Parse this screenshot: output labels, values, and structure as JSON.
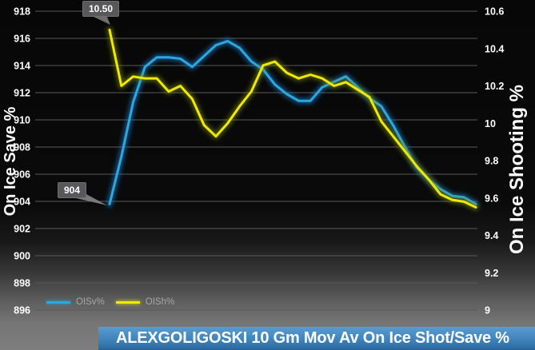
{
  "title_bar": {
    "text": "ALEXGOLIGOSKI 10 Gm Mov Av On Ice Shot/Save %",
    "bg_color": "#4186be"
  },
  "legend": [
    {
      "label": "OISv%",
      "color": "#2aa8e0"
    },
    {
      "label": "OISh%",
      "color": "#f0e800"
    }
  ],
  "data_labels": [
    {
      "text": "10.50",
      "series": "OISh%",
      "point": "first"
    },
    {
      "text": "904",
      "series": "OISv%",
      "point": "first"
    }
  ],
  "chart_data": {
    "type": "line",
    "title": "ALEXGOLIGOSKI 10 Gm Mov Av On Ice Shot/Save %",
    "x_label": "",
    "x": [
      1,
      2,
      3,
      4,
      5,
      6,
      7,
      8,
      9,
      10,
      11,
      12,
      13,
      14,
      15,
      16,
      17,
      18,
      19,
      20,
      21,
      22,
      23,
      24,
      25,
      26,
      27,
      28,
      29,
      30,
      31,
      32
    ],
    "left_axis": {
      "label": "On Ice Save %",
      "min": 896,
      "max": 918,
      "ticks": [
        918,
        916,
        914,
        912,
        910,
        908,
        906,
        904,
        902,
        900,
        898,
        896
      ]
    },
    "right_axis": {
      "label": "On Ice Shooting %",
      "min": 9,
      "max": 10.6,
      "ticks": [
        10.6,
        10.4,
        10.2,
        10,
        9.8,
        9.6,
        9.4,
        9.2,
        9
      ]
    },
    "grid": true,
    "legend_position": "bottom-left",
    "plot_background": "#000000",
    "gridline_color": "#595959",
    "series": [
      {
        "name": "OISv%",
        "axis": "left",
        "color": "#2aa8e0",
        "glow": "#1d7fd0",
        "values": [
          903.8,
          907.3,
          911.3,
          913.9,
          914.6,
          914.6,
          914.5,
          913.9,
          914.7,
          915.5,
          915.8,
          915.3,
          914.3,
          913.7,
          912.6,
          911.9,
          911.4,
          911.4,
          912.4,
          912.8,
          913.2,
          912.4,
          911.6,
          911.0,
          909.6,
          908.0,
          906.5,
          905.6,
          904.9,
          904.4,
          904.3,
          903.8
        ]
      },
      {
        "name": "OISh%",
        "axis": "right",
        "color": "#f0e800",
        "glow": "#7f8f00",
        "values": [
          10.5,
          10.2,
          10.25,
          10.24,
          10.24,
          10.17,
          10.2,
          10.13,
          9.99,
          9.93,
          10.0,
          10.09,
          10.17,
          10.31,
          10.33,
          10.27,
          10.24,
          10.26,
          10.24,
          10.2,
          10.22,
          10.18,
          10.14,
          10.01,
          9.93,
          9.85,
          9.77,
          9.7,
          9.62,
          9.59,
          9.58,
          9.55
        ]
      }
    ]
  }
}
